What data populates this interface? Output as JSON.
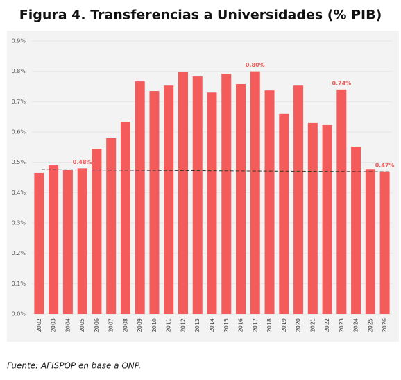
{
  "chart_data": {
    "type": "bar",
    "title": "Figura 4. Transferencias a Universidades (% PIB)",
    "categories": [
      "2002",
      "2003",
      "2004",
      "2005",
      "2006",
      "2007",
      "2008",
      "2009",
      "2010",
      "2011",
      "2012",
      "2013",
      "2014",
      "2015",
      "2016",
      "2017",
      "2018",
      "2019",
      "2020",
      "2021",
      "2022",
      "2023",
      "2024",
      "2025",
      "2026"
    ],
    "values": [
      0.465,
      0.49,
      0.476,
      0.48,
      0.545,
      0.58,
      0.634,
      0.767,
      0.735,
      0.753,
      0.797,
      0.783,
      0.73,
      0.792,
      0.758,
      0.8,
      0.737,
      0.66,
      0.753,
      0.63,
      0.623,
      0.74,
      0.552,
      0.478,
      0.47
    ],
    "value_labels": [
      null,
      null,
      null,
      "0.48%",
      null,
      null,
      null,
      null,
      null,
      null,
      null,
      null,
      null,
      null,
      null,
      "0.80%",
      null,
      null,
      null,
      null,
      null,
      "0.74%",
      null,
      null,
      "0.47%"
    ],
    "color": "#f45b5b",
    "trend_line": {
      "values": [
        0.476,
        0.469
      ],
      "color": "#333333"
    },
    "ylim": [
      0,
      0.9
    ],
    "yticks": [
      {
        "value": 0,
        "label": "0.0%"
      },
      {
        "value": 0.1,
        "label": "0.1%"
      },
      {
        "value": 0.2,
        "label": "0.2%"
      },
      {
        "value": 0.3,
        "label": "0.3%"
      },
      {
        "value": 0.4,
        "label": "0.4%"
      },
      {
        "value": 0.5,
        "label": "0.5%"
      },
      {
        "value": 0.6,
        "label": "0.6%"
      },
      {
        "value": 0.7,
        "label": "0.7%"
      },
      {
        "value": 0.8,
        "label": "0.8%"
      },
      {
        "value": 0.9,
        "label": "0.9%"
      }
    ],
    "grid": true,
    "source": "Fuente: AFISPOP en base a ONP."
  }
}
